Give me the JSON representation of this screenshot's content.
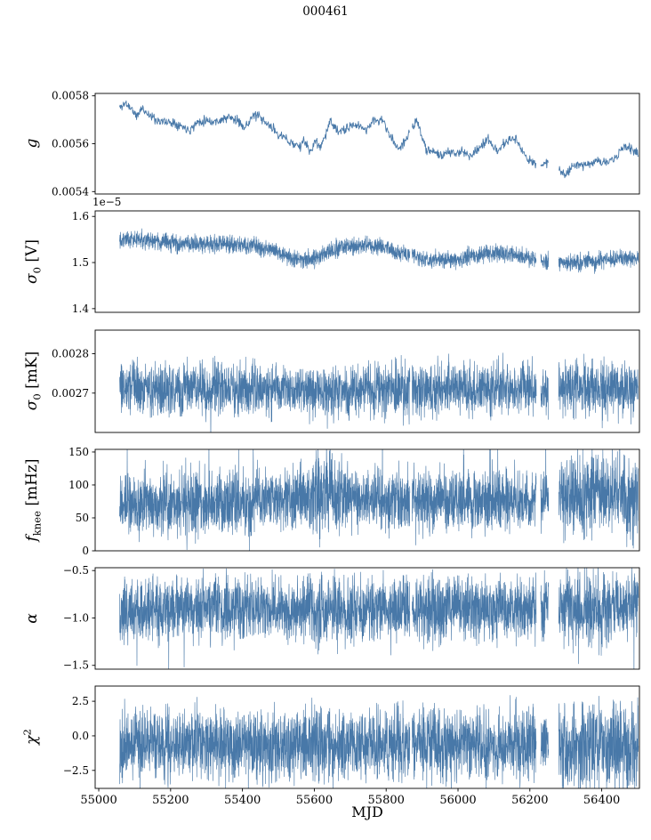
{
  "chart_data": {
    "type": "line",
    "title": "000461",
    "xlabel": "MJD",
    "line_color": "#4878a8",
    "xlim": [
      54990,
      56505
    ],
    "xticks": [
      55000,
      55200,
      55400,
      55600,
      55800,
      56000,
      56200,
      56400
    ],
    "xtick_labels": [
      "55000",
      "55200",
      "55400",
      "55600",
      "55800",
      "56000",
      "56200",
      "56400"
    ],
    "x_range_data": [
      55058,
      56502
    ],
    "gaps": [
      [
        55866,
        55872
      ],
      [
        56218,
        56230
      ],
      [
        56252,
        56280
      ]
    ],
    "panels": [
      {
        "name": "g",
        "ylabel_main": "g",
        "ylabel_sub": "",
        "ylabel_sup": "",
        "ylabel_unit": "",
        "offset_text": "",
        "ylim": [
          0.00539,
          0.00581
        ],
        "yticks": [
          0.0054,
          0.0056,
          0.0058
        ],
        "ytick_labels": [
          "0.0054",
          "0.0056",
          "0.0058"
        ],
        "n_points": 1100,
        "noise_amp": 1.2e-05,
        "seed": 11,
        "trend": [
          [
            55058,
            0.00575
          ],
          [
            55075,
            0.00577
          ],
          [
            55095,
            0.00574
          ],
          [
            55105,
            0.00571
          ],
          [
            55120,
            0.00575
          ],
          [
            55140,
            0.00572
          ],
          [
            55160,
            0.0057
          ],
          [
            55185,
            0.00569
          ],
          [
            55210,
            0.00569
          ],
          [
            55235,
            0.00567
          ],
          [
            55255,
            0.00566
          ],
          [
            55275,
            0.00569
          ],
          [
            55300,
            0.0057
          ],
          [
            55320,
            0.00569
          ],
          [
            55340,
            0.0057
          ],
          [
            55365,
            0.00571
          ],
          [
            55390,
            0.00569
          ],
          [
            55410,
            0.00567
          ],
          [
            55425,
            0.00571
          ],
          [
            55440,
            0.00572
          ],
          [
            55460,
            0.00569
          ],
          [
            55480,
            0.00567
          ],
          [
            55500,
            0.00564
          ],
          [
            55520,
            0.00562
          ],
          [
            55540,
            0.0056
          ],
          [
            55560,
            0.00559
          ],
          [
            55575,
            0.00561
          ],
          [
            55590,
            0.00556
          ],
          [
            55605,
            0.00562
          ],
          [
            55615,
            0.00558
          ],
          [
            55632,
            0.00564
          ],
          [
            55645,
            0.0057
          ],
          [
            55658,
            0.00566
          ],
          [
            55672,
            0.00565
          ],
          [
            55690,
            0.00566
          ],
          [
            55710,
            0.00568
          ],
          [
            55730,
            0.00567
          ],
          [
            55745,
            0.00566
          ],
          [
            55760,
            0.00569
          ],
          [
            55780,
            0.0057
          ],
          [
            55795,
            0.00569
          ],
          [
            55810,
            0.00563
          ],
          [
            55825,
            0.0056
          ],
          [
            55838,
            0.00558
          ],
          [
            55855,
            0.00562
          ],
          [
            55872,
            0.00566
          ],
          [
            55885,
            0.0057
          ],
          [
            55898,
            0.00563
          ],
          [
            55912,
            0.00558
          ],
          [
            55930,
            0.00557
          ],
          [
            55950,
            0.00555
          ],
          [
            55970,
            0.00556
          ],
          [
            55990,
            0.00556
          ],
          [
            56010,
            0.00557
          ],
          [
            56030,
            0.00555
          ],
          [
            56050,
            0.00557
          ],
          [
            56070,
            0.0056
          ],
          [
            56085,
            0.00562
          ],
          [
            56100,
            0.00557
          ],
          [
            56115,
            0.00558
          ],
          [
            56130,
            0.0056
          ],
          [
            56145,
            0.00562
          ],
          [
            56160,
            0.00562
          ],
          [
            56175,
            0.00558
          ],
          [
            56190,
            0.00554
          ],
          [
            56210,
            0.00552
          ],
          [
            56230,
            0.00551
          ],
          [
            56250,
            0.00552
          ],
          [
            56270,
            0.00551
          ],
          [
            56285,
            0.00549
          ],
          [
            56300,
            0.00547
          ],
          [
            56315,
            0.0055
          ],
          [
            56330,
            0.00552
          ],
          [
            56350,
            0.00551
          ],
          [
            56370,
            0.00552
          ],
          [
            56390,
            0.00553
          ],
          [
            56410,
            0.00552
          ],
          [
            56430,
            0.00553
          ],
          [
            56450,
            0.00556
          ],
          [
            56465,
            0.00559
          ],
          [
            56480,
            0.00558
          ],
          [
            56502,
            0.00556
          ]
        ]
      },
      {
        "name": "sigma0-V",
        "ylabel_main": "σ",
        "ylabel_sub": "0",
        "ylabel_sup": "",
        "ylabel_unit": " [V]",
        "offset_text": "1e−5",
        "ylim": [
          1.392,
          1.612
        ],
        "yticks": [
          1.4,
          1.5,
          1.6
        ],
        "ytick_labels": [
          "1.4",
          "1.5",
          "1.6"
        ],
        "n_points": 3000,
        "noise_amp": 0.011,
        "seed": 22,
        "trend": [
          [
            55058,
            1.553
          ],
          [
            55120,
            1.549
          ],
          [
            55200,
            1.542
          ],
          [
            55280,
            1.54
          ],
          [
            55360,
            1.54
          ],
          [
            55430,
            1.537
          ],
          [
            55480,
            1.528
          ],
          [
            55540,
            1.509
          ],
          [
            55580,
            1.507
          ],
          [
            55620,
            1.515
          ],
          [
            55660,
            1.53
          ],
          [
            55700,
            1.536
          ],
          [
            55760,
            1.537
          ],
          [
            55800,
            1.532
          ],
          [
            55840,
            1.517
          ],
          [
            55870,
            1.52
          ],
          [
            55900,
            1.506
          ],
          [
            55950,
            1.507
          ],
          [
            56000,
            1.505
          ],
          [
            56040,
            1.516
          ],
          [
            56080,
            1.521
          ],
          [
            56140,
            1.52
          ],
          [
            56180,
            1.514
          ],
          [
            56220,
            1.507
          ],
          [
            56260,
            1.502
          ],
          [
            56320,
            1.5
          ],
          [
            56380,
            1.502
          ],
          [
            56440,
            1.508
          ],
          [
            56502,
            1.511
          ]
        ]
      },
      {
        "name": "sigma0-mK",
        "ylabel_main": "σ",
        "ylabel_sub": "0",
        "ylabel_sup": "",
        "ylabel_unit": " [mK]",
        "offset_text": "",
        "ylim": [
          0.0026,
          0.00286
        ],
        "yticks": [
          0.0027,
          0.0028
        ],
        "ytick_labels": [
          "0.0027",
          "0.0028"
        ],
        "n_points": 3000,
        "noise_amp": 4e-05,
        "seed": 33,
        "spikes": {
          "p_up": 0.004,
          "up": [
            2e-05,
            5e-05
          ],
          "p_down": 0.008,
          "down": [
            3e-05,
            6e-05
          ]
        },
        "trend": [
          [
            55058,
            0.002714
          ],
          [
            55200,
            0.002712
          ],
          [
            55350,
            0.002711
          ],
          [
            55500,
            0.002708
          ],
          [
            55600,
            0.002703
          ],
          [
            55640,
            0.002696
          ],
          [
            55680,
            0.002705
          ],
          [
            55750,
            0.00271
          ],
          [
            55850,
            0.00271
          ],
          [
            55950,
            0.002712
          ],
          [
            56050,
            0.002713
          ],
          [
            56150,
            0.002714
          ],
          [
            56250,
            0.002712
          ],
          [
            56350,
            0.002712
          ],
          [
            56502,
            0.00271
          ]
        ]
      },
      {
        "name": "fknee",
        "ylabel_main": "f",
        "ylabel_sub": "knee",
        "ylabel_sup": "",
        "ylabel_unit": " [mHz]",
        "offset_text": "",
        "ylim": [
          0,
          154
        ],
        "yticks": [
          0,
          50,
          100,
          150
        ],
        "ytick_labels": [
          "0",
          "50",
          "100",
          "150"
        ],
        "n_points": 3200,
        "noise_amp": 28,
        "seed": 44,
        "spikes": {
          "p_up": 0.025,
          "up": [
            20,
            60
          ],
          "p_down": 0.01,
          "down": [
            15,
            35
          ]
        },
        "boosts": [
          {
            "range": [
              55580,
              55680
            ],
            "factor": 1.25
          },
          {
            "range": [
              56290,
              56505
            ],
            "factor": 1.3
          }
        ],
        "trend": [
          [
            55058,
            72
          ],
          [
            55200,
            72
          ],
          [
            55350,
            73
          ],
          [
            55480,
            76
          ],
          [
            55560,
            82
          ],
          [
            55620,
            88
          ],
          [
            55660,
            86
          ],
          [
            55720,
            80
          ],
          [
            55800,
            78
          ],
          [
            55900,
            76
          ],
          [
            56000,
            74
          ],
          [
            56100,
            76
          ],
          [
            56200,
            78
          ],
          [
            56300,
            84
          ],
          [
            56400,
            84
          ],
          [
            56502,
            80
          ]
        ]
      },
      {
        "name": "alpha",
        "ylabel_main": "α",
        "ylabel_sub": "",
        "ylabel_sup": "",
        "ylabel_unit": "",
        "offset_text": "",
        "ylim": [
          -1.54,
          -0.47
        ],
        "yticks": [
          -1.5,
          -1.0,
          -0.5
        ],
        "ytick_labels": [
          "−1.5",
          "−1.0",
          "−0.5"
        ],
        "n_points": 3200,
        "noise_amp": 0.2,
        "seed": 55,
        "spikes": {
          "p_up": 0,
          "up": [
            0,
            0
          ],
          "p_down": 0.012,
          "down": [
            0.15,
            0.4
          ]
        },
        "boosts": [
          {
            "range": [
              56290,
              56505
            ],
            "factor": 1.15
          }
        ],
        "trend": [
          [
            55058,
            -0.92
          ],
          [
            55200,
            -0.9
          ],
          [
            55400,
            -0.9
          ],
          [
            55600,
            -0.92
          ],
          [
            55800,
            -0.9
          ],
          [
            56000,
            -0.9
          ],
          [
            56200,
            -0.9
          ],
          [
            56400,
            -0.88
          ],
          [
            56502,
            -0.88
          ]
        ]
      },
      {
        "name": "chi2",
        "ylabel_main": "χ",
        "ylabel_sub": "",
        "ylabel_sup": "2",
        "ylabel_unit": "",
        "offset_text": "",
        "ylim": [
          -3.8,
          3.6
        ],
        "yticks": [
          -2.5,
          0.0,
          2.5
        ],
        "ytick_labels": [
          "−2.5",
          "0.0",
          "2.5"
        ],
        "n_points": 3200,
        "noise_amp": 1.55,
        "seed": 66,
        "spikes": {
          "p_up": 0.003,
          "up": [
            0.5,
            1.0
          ],
          "p_down": 0.004,
          "down": [
            0.5,
            1.0
          ]
        },
        "boosts": [
          {
            "range": [
              56290,
              56505
            ],
            "factor": 1.2
          }
        ],
        "trend": [
          [
            55058,
            -0.62
          ],
          [
            55300,
            -0.6
          ],
          [
            55600,
            -0.62
          ],
          [
            55900,
            -0.6
          ],
          [
            56200,
            -0.6
          ],
          [
            56502,
            -0.58
          ]
        ]
      }
    ]
  }
}
